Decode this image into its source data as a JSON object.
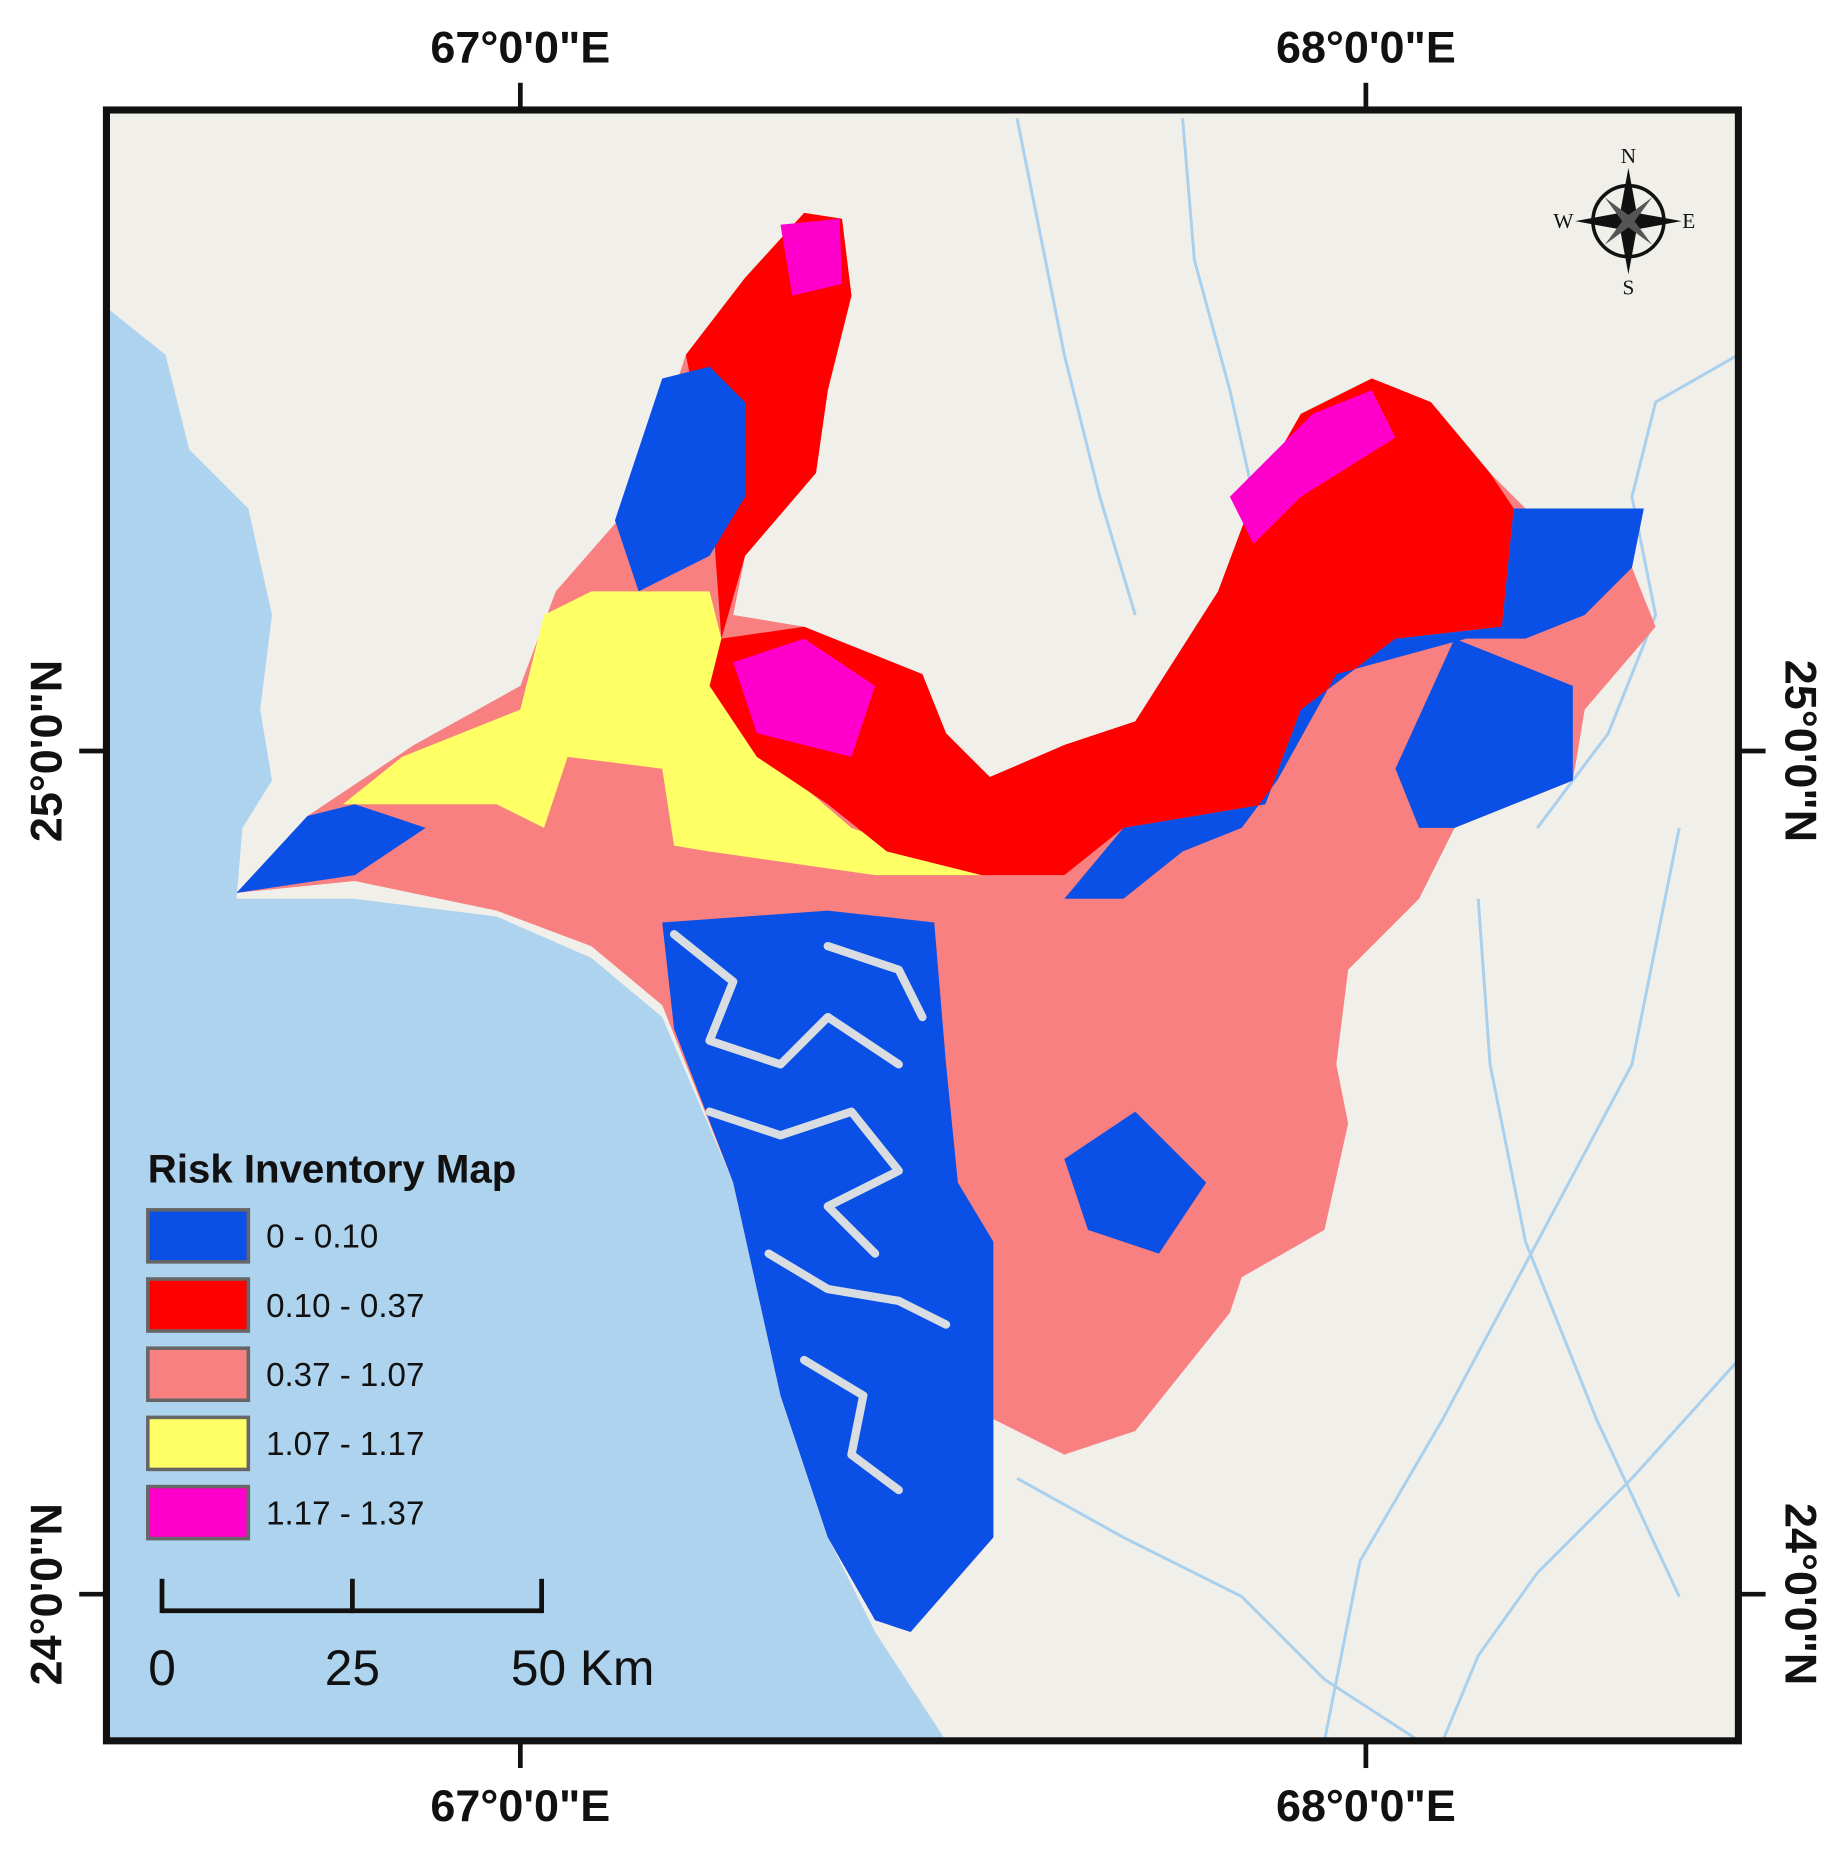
{
  "graticule": {
    "longitudes": [
      "67°0'0\"E",
      "68°0'0\"E"
    ],
    "latitudes": [
      "25°0'0\"N",
      "24°0'0\"N"
    ]
  },
  "compass": {
    "north": "N",
    "east": "E",
    "south": "S",
    "west": "W"
  },
  "legend": {
    "title": "Risk Inventory Map",
    "items": [
      {
        "label": "0 - 0.10",
        "color": "#0a50e6"
      },
      {
        "label": "0.10 - 0.37",
        "color": "#ff0000"
      },
      {
        "label": "0.37 - 1.07",
        "color": "#f88080"
      },
      {
        "label": "1.07 - 1.17",
        "color": "#ffff66"
      },
      {
        "label": "1.17 - 1.37",
        "color": "#ff00cc"
      }
    ]
  },
  "scale_bar": {
    "labels": [
      "0",
      "25",
      "50 Km"
    ]
  }
}
